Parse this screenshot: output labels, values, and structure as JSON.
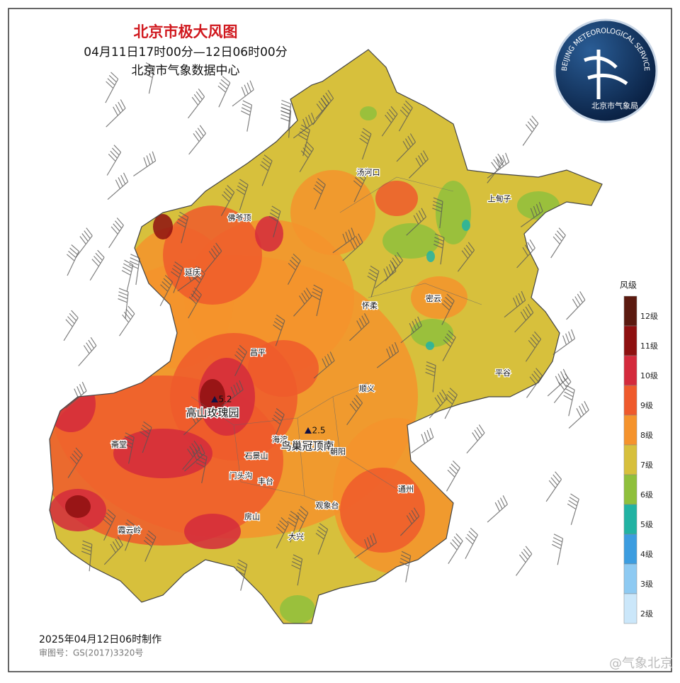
{
  "header": {
    "title": "北京市极大风图",
    "period": "04月11日17时00分—12日06时00分",
    "source": "北京市气象数据中心"
  },
  "logo": {
    "ring_text": "BEIJING METEOROLOGICAL SERVICE",
    "name": "北京市气象局"
  },
  "places": [
    "汤河口",
    "上甸子",
    "佛爷顶",
    "延庆",
    "怀柔",
    "密云",
    "昌平",
    "平谷",
    "顺义",
    "高山玫瑰园",
    "海淀",
    "鸟巢冠顶南",
    "石景山",
    "朝阳",
    "门头沟",
    "丰台",
    "斋堂",
    "通州",
    "观象台",
    "房山",
    "霞云岭",
    "大兴"
  ],
  "stations": [
    "5.2",
    "2.5"
  ],
  "legend": {
    "title": "风级",
    "items": [
      {
        "label": "12级",
        "color": "#5b1a10"
      },
      {
        "label": "11级",
        "color": "#8e1010"
      },
      {
        "label": "10级",
        "color": "#d42a3c"
      },
      {
        "label": "9级",
        "color": "#ef5a2c"
      },
      {
        "label": "8级",
        "color": "#f5932c"
      },
      {
        "label": "7级",
        "color": "#d7c03c"
      },
      {
        "label": "6级",
        "color": "#8fc03c"
      },
      {
        "label": "5级",
        "color": "#22b3a3"
      },
      {
        "label": "4级",
        "color": "#3c9de0"
      },
      {
        "label": "3级",
        "color": "#8ecaf2"
      },
      {
        "label": "2级",
        "color": "#cbe7fa"
      }
    ]
  },
  "footer": {
    "made": "2025年04月12日06时制作",
    "approval": "审图号：GS(2017)3320号",
    "watermark": "@气象北京"
  }
}
